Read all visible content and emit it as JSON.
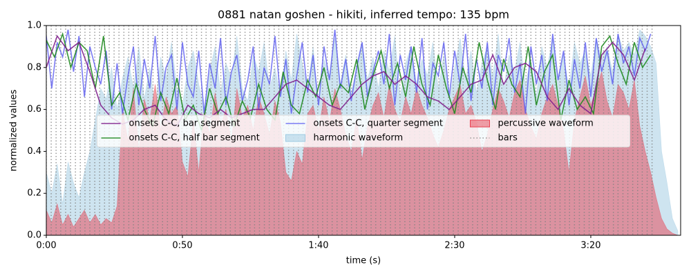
{
  "chart_data": {
    "type": "line",
    "title": "0881 natan goshen - hikiti, inferred tempo: 135 bpm",
    "x_label": "time (s)",
    "y_label": "normalized values",
    "xlim": [
      0,
      233
    ],
    "ylim": [
      0,
      1
    ],
    "xticks": [
      {
        "value": 0,
        "label": "0:00"
      },
      {
        "value": 50,
        "label": "0:50"
      },
      {
        "value": 100,
        "label": "1:40"
      },
      {
        "value": 150,
        "label": "2:30"
      },
      {
        "value": 200,
        "label": "3:20"
      }
    ],
    "yticks": [
      {
        "value": 0,
        "label": "0.0"
      },
      0.2,
      0.4,
      0.6,
      0.8,
      {
        "value": 1,
        "label": "1.0"
      }
    ],
    "legend": "center",
    "legend_columns": 3,
    "x": [
      0,
      2,
      4,
      6,
      8,
      10,
      12,
      14,
      16,
      18,
      20,
      22,
      24,
      26,
      28,
      30,
      32,
      34,
      36,
      38,
      40,
      42,
      44,
      46,
      48,
      50,
      52,
      54,
      56,
      58,
      60,
      62,
      64,
      66,
      68,
      70,
      72,
      74,
      76,
      78,
      80,
      82,
      84,
      86,
      88,
      90,
      92,
      94,
      96,
      98,
      100,
      102,
      104,
      106,
      108,
      110,
      112,
      114,
      116,
      118,
      120,
      122,
      124,
      126,
      128,
      130,
      132,
      134,
      136,
      138,
      140,
      142,
      144,
      146,
      148,
      150,
      152,
      154,
      156,
      158,
      160,
      162,
      164,
      166,
      168,
      170,
      172,
      174,
      176,
      178,
      180,
      182,
      184,
      186,
      188,
      190,
      192,
      194,
      196,
      198,
      200,
      202,
      204,
      206,
      208,
      210,
      212,
      214,
      216,
      218,
      220,
      222,
      224,
      226,
      228,
      230,
      232
    ],
    "series": [
      {
        "name": "onsets C-C, bar segment",
        "kind": "line",
        "color": "#7f1f8c",
        "opacity": 0.9,
        "x": [
          0,
          4,
          8,
          12,
          16,
          20,
          24,
          28,
          32,
          36,
          40,
          44,
          48,
          52,
          56,
          60,
          64,
          68,
          72,
          76,
          80,
          84,
          88,
          92,
          96,
          100,
          104,
          108,
          112,
          116,
          120,
          124,
          128,
          132,
          136,
          140,
          144,
          148,
          152,
          156,
          160,
          164,
          168,
          172,
          176,
          180,
          184,
          188,
          192,
          196,
          200,
          204,
          208,
          212,
          216,
          220
        ],
        "values": [
          0.8,
          0.95,
          0.88,
          0.92,
          0.78,
          0.62,
          0.56,
          0.53,
          0.55,
          0.6,
          0.62,
          0.55,
          0.52,
          0.62,
          0.58,
          0.56,
          0.6,
          0.56,
          0.58,
          0.6,
          0.6,
          0.66,
          0.72,
          0.74,
          0.7,
          0.66,
          0.62,
          0.6,
          0.66,
          0.72,
          0.76,
          0.78,
          0.72,
          0.76,
          0.72,
          0.66,
          0.64,
          0.6,
          0.66,
          0.72,
          0.74,
          0.86,
          0.72,
          0.8,
          0.82,
          0.78,
          0.66,
          0.6,
          0.7,
          0.62,
          0.58,
          0.86,
          0.92,
          0.86,
          0.74,
          0.89
        ]
      },
      {
        "name": "onsets C-C, half bar segment",
        "kind": "line",
        "color": "#1f8a1f",
        "opacity": 0.9,
        "x": [
          0,
          3,
          6,
          9,
          12,
          15,
          18,
          21,
          24,
          27,
          30,
          33,
          36,
          39,
          42,
          45,
          48,
          51,
          54,
          57,
          60,
          63,
          66,
          69,
          72,
          75,
          78,
          81,
          84,
          87,
          90,
          93,
          96,
          99,
          102,
          105,
          108,
          111,
          114,
          117,
          120,
          123,
          126,
          129,
          132,
          135,
          138,
          141,
          144,
          147,
          150,
          153,
          156,
          159,
          162,
          165,
          168,
          171,
          174,
          177,
          180,
          183,
          186,
          189,
          192,
          195,
          198,
          201,
          204,
          207,
          210,
          213,
          216,
          219,
          222
        ],
        "values": [
          0.93,
          0.85,
          0.96,
          0.8,
          0.92,
          0.88,
          0.7,
          0.95,
          0.62,
          0.68,
          0.55,
          0.72,
          0.6,
          0.52,
          0.68,
          0.58,
          0.75,
          0.55,
          0.62,
          0.5,
          0.7,
          0.58,
          0.66,
          0.52,
          0.64,
          0.56,
          0.72,
          0.6,
          0.55,
          0.78,
          0.62,
          0.58,
          0.74,
          0.66,
          0.8,
          0.62,
          0.72,
          0.68,
          0.84,
          0.6,
          0.76,
          0.88,
          0.7,
          0.82,
          0.66,
          0.9,
          0.72,
          0.62,
          0.86,
          0.7,
          0.58,
          0.8,
          0.68,
          0.92,
          0.74,
          0.6,
          0.84,
          0.72,
          0.66,
          0.9,
          0.62,
          0.78,
          0.86,
          0.55,
          0.74,
          0.6,
          0.66,
          0.58,
          0.9,
          0.95,
          0.82,
          0.72,
          0.92,
          0.8,
          0.86
        ]
      },
      {
        "name": "onsets C-C, quarter segment",
        "kind": "line",
        "color": "#5a5af0",
        "opacity": 0.8,
        "x": [
          0,
          2,
          4,
          6,
          8,
          10,
          12,
          14,
          16,
          18,
          20,
          22,
          24,
          26,
          28,
          30,
          32,
          34,
          36,
          38,
          40,
          42,
          44,
          46,
          48,
          50,
          52,
          54,
          56,
          58,
          60,
          62,
          64,
          66,
          68,
          70,
          72,
          74,
          76,
          78,
          80,
          82,
          84,
          86,
          88,
          90,
          92,
          94,
          96,
          98,
          100,
          102,
          104,
          106,
          108,
          110,
          112,
          114,
          116,
          118,
          120,
          122,
          124,
          126,
          128,
          130,
          132,
          134,
          136,
          138,
          140,
          142,
          144,
          146,
          148,
          150,
          152,
          154,
          156,
          158,
          160,
          162,
          164,
          166,
          168,
          170,
          172,
          174,
          176,
          178,
          180,
          182,
          184,
          186,
          188,
          190,
          192,
          194,
          196,
          198,
          200,
          202,
          204,
          206,
          208,
          210,
          212,
          214,
          216,
          218,
          220,
          222
        ],
        "values": [
          0.95,
          0.7,
          0.92,
          0.85,
          0.98,
          0.78,
          0.95,
          0.66,
          0.9,
          0.8,
          0.72,
          0.88,
          0.6,
          0.82,
          0.58,
          0.76,
          0.9,
          0.62,
          0.84,
          0.7,
          0.95,
          0.64,
          0.8,
          0.86,
          0.6,
          0.92,
          0.72,
          0.66,
          0.88,
          0.58,
          0.82,
          0.7,
          0.94,
          0.62,
          0.78,
          0.86,
          0.64,
          0.74,
          0.9,
          0.6,
          0.8,
          0.72,
          0.95,
          0.66,
          0.84,
          0.58,
          0.76,
          0.92,
          0.68,
          0.86,
          0.62,
          0.9,
          0.74,
          0.98,
          0.7,
          0.84,
          0.64,
          0.8,
          0.92,
          0.66,
          0.78,
          0.88,
          0.72,
          0.96,
          0.62,
          0.86,
          0.74,
          0.9,
          0.68,
          0.94,
          0.6,
          0.82,
          0.76,
          0.92,
          0.66,
          0.88,
          0.72,
          0.96,
          0.64,
          0.84,
          0.7,
          0.92,
          0.62,
          0.86,
          0.78,
          0.94,
          0.68,
          0.82,
          0.58,
          0.9,
          0.72,
          0.86,
          0.64,
          0.96,
          0.74,
          0.88,
          0.62,
          0.84,
          0.7,
          0.92,
          0.66,
          0.94,
          0.78,
          0.88,
          0.72,
          0.96,
          0.82,
          0.9,
          0.76,
          0.94,
          0.88,
          0.96
        ]
      },
      {
        "name": "harmonic waveform",
        "kind": "area",
        "color": "#9ec9e2",
        "opacity": 0.5,
        "values": [
          0.3,
          0.2,
          0.34,
          0.15,
          0.35,
          0.25,
          0.18,
          0.3,
          0.4,
          0.55,
          0.7,
          0.65,
          0.8,
          0.6,
          0.75,
          0.85,
          0.7,
          0.9,
          0.65,
          0.8,
          0.6,
          0.85,
          0.75,
          0.92,
          0.7,
          0.62,
          0.8,
          0.88,
          0.72,
          0.6,
          0.78,
          0.9,
          0.68,
          0.82,
          0.75,
          0.95,
          0.7,
          0.64,
          0.86,
          0.78,
          0.92,
          0.7,
          0.8,
          0.66,
          0.88,
          0.74,
          0.96,
          0.82,
          0.7,
          0.9,
          0.62,
          0.84,
          0.76,
          0.94,
          0.72,
          0.86,
          0.68,
          0.8,
          0.92,
          0.74,
          0.85,
          0.7,
          0.88,
          0.78,
          0.95,
          0.66,
          0.82,
          0.9,
          0.72,
          0.84,
          0.76,
          0.92,
          0.7,
          0.86,
          0.64,
          0.8,
          0.94,
          0.74,
          0.88,
          0.68,
          0.82,
          0.9,
          0.76,
          0.96,
          0.7,
          0.86,
          0.78,
          0.92,
          0.72,
          0.84,
          0.66,
          0.9,
          0.8,
          0.94,
          0.74,
          0.86,
          0.7,
          0.92,
          0.82,
          0.88,
          0.76,
          0.94,
          0.84,
          0.9,
          0.78,
          0.96,
          0.88,
          0.92,
          0.86,
          0.98,
          0.95,
          0.9,
          0.82,
          0.4,
          0.25,
          0.08,
          0.02
        ]
      },
      {
        "name": "percussive waveform",
        "kind": "area",
        "color": "#e8404f",
        "opacity": 0.5,
        "values": [
          0.12,
          0.06,
          0.15,
          0.05,
          0.1,
          0.04,
          0.08,
          0.12,
          0.06,
          0.1,
          0.05,
          0.08,
          0.06,
          0.14,
          0.6,
          0.45,
          0.7,
          0.4,
          0.65,
          0.55,
          0.72,
          0.5,
          0.66,
          0.58,
          0.62,
          0.35,
          0.28,
          0.55,
          0.3,
          0.6,
          0.48,
          0.68,
          0.52,
          0.6,
          0.44,
          0.7,
          0.56,
          0.62,
          0.5,
          0.66,
          0.58,
          0.48,
          0.64,
          0.54,
          0.3,
          0.26,
          0.4,
          0.34,
          0.58,
          0.62,
          0.5,
          0.66,
          0.54,
          0.7,
          0.6,
          0.48,
          0.4,
          0.56,
          0.36,
          0.52,
          0.62,
          0.68,
          0.56,
          0.72,
          0.6,
          0.54,
          0.66,
          0.58,
          0.7,
          0.62,
          0.56,
          0.48,
          0.42,
          0.5,
          0.6,
          0.66,
          0.72,
          0.58,
          0.62,
          0.54,
          0.4,
          0.48,
          0.6,
          0.7,
          0.64,
          0.56,
          0.68,
          0.74,
          0.6,
          0.52,
          0.46,
          0.58,
          0.66,
          0.72,
          0.62,
          0.5,
          0.3,
          0.55,
          0.66,
          0.76,
          0.62,
          0.7,
          0.78,
          0.64,
          0.56,
          0.72,
          0.68,
          0.6,
          0.74,
          0.52,
          0.4,
          0.3,
          0.18,
          0.08,
          0.03,
          0.01,
          0.0
        ]
      },
      {
        "name": "bars",
        "kind": "vlines",
        "color": "#808080",
        "opacity": 0.8,
        "line_style": "dotted",
        "x": [
          0,
          1.8,
          3.6,
          5.3,
          7.1,
          8.9,
          10.7,
          12.5,
          14.2,
          16.0,
          17.8,
          19.6,
          21.4,
          23.1,
          24.9,
          26.7,
          28.5,
          30.3,
          32.0,
          33.8,
          35.6,
          37.4,
          39.2,
          40.9,
          42.7,
          44.5,
          46.3,
          48.1,
          49.8,
          51.6,
          53.4,
          55.2,
          57.0,
          58.7,
          60.5,
          62.3,
          64.1,
          65.9,
          67.6,
          69.4,
          71.2,
          73.0,
          74.8,
          76.5,
          78.3,
          80.1,
          81.9,
          83.7,
          85.4,
          87.2,
          89.0,
          90.8,
          92.6,
          94.3,
          96.1,
          97.9,
          99.7,
          101.5,
          103.2,
          105.0,
          106.8,
          108.6,
          110.4,
          112.1,
          113.9,
          115.7,
          117.5,
          119.3,
          121.0,
          122.8,
          124.6,
          126.4,
          128.2,
          129.9,
          131.7,
          133.5,
          135.3,
          137.1,
          138.8,
          140.6,
          142.4,
          144.2,
          146.0,
          147.7,
          149.5,
          151.3,
          153.1,
          154.9,
          156.6,
          158.4,
          160.2,
          162.0,
          163.8,
          165.5,
          167.3,
          169.1,
          170.9,
          172.7,
          174.4,
          176.2,
          178.0,
          179.8,
          181.6,
          183.3,
          185.1,
          186.9,
          188.7,
          190.5,
          192.2,
          194.0,
          195.8,
          197.6,
          199.4,
          201.1,
          202.9,
          204.7,
          206.5,
          208.3,
          210.0,
          211.8,
          213.6,
          215.4,
          217.2,
          218.9,
          220.7,
          222.5
        ]
      }
    ]
  }
}
